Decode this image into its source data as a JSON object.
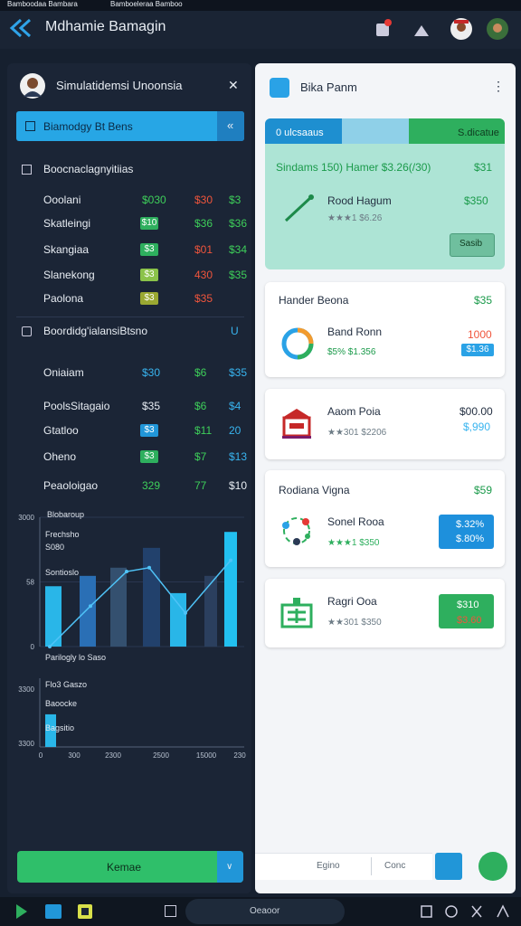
{
  "status_bar": {
    "tabs": [
      "Bamboodaa Bambara",
      "Bamboeleraa Bamboo"
    ]
  },
  "header": {
    "title": "Mdhamie Bamagin"
  },
  "left_panel": {
    "title": "Simulatidemsi Unoonsia",
    "search": "Biamodgy Bt Bens",
    "section1": {
      "title": "Boocnaclagnyitiias",
      "rows": [
        {
          "name": "Ooolani",
          "cells": [
            "$030",
            "$30",
            "$3"
          ]
        },
        {
          "name": "Skatleingi",
          "cells": [
            "$10",
            "$36",
            "$36"
          ]
        },
        {
          "name": "Skangiaa",
          "cells": [
            "$3",
            "$01",
            "$34"
          ]
        },
        {
          "name": "Slanekong",
          "cells": [
            "$3",
            "430",
            "$35"
          ]
        },
        {
          "name": "Paolona",
          "cells": [
            "$3",
            "$35"
          ]
        }
      ]
    },
    "section2": {
      "title": "Boordidg'ialansiBtsno",
      "badge": "U",
      "rows": [
        {
          "name": "Oniaiam",
          "cells": [
            "$30",
            "$6",
            "$35"
          ]
        },
        {
          "name": "PoolsSitagaio",
          "cells": [
            "$35",
            "$6",
            "$4"
          ]
        },
        {
          "name": "Gtatloo",
          "cells": [
            "$3",
            "$11",
            "20"
          ]
        },
        {
          "name": "Oheno",
          "cells": [
            "$3",
            "$7",
            "$13"
          ]
        },
        {
          "name": "Peaoloigao",
          "cells": [
            "329",
            "77",
            "$10"
          ]
        }
      ]
    },
    "chart": {
      "labels": [
        "Blobaroup",
        "Frechsho",
        "S080",
        "Sontioslo",
        "Parilogly lo Saso"
      ],
      "y_axis_labels": [
        "3000",
        "58",
        "0"
      ],
      "ylim": [
        0,
        3000
      ],
      "bars": [
        1400,
        1640,
        1830,
        2290,
        1240,
        1640,
        2660
      ],
      "bar_colors": [
        "#29b6e8",
        "#2a6fb5",
        "#34506f",
        "#22416c",
        "#29b6e8",
        "#2b3f5e",
        "#22c0f0"
      ],
      "line": [
        0,
        940,
        1740,
        1830,
        780,
        2000
      ],
      "line_color": "#4fc3f7"
    },
    "mini_chart": {
      "labels": [
        "Flo3 Gaszo",
        "Baoocke",
        "Bagsitio"
      ],
      "y_axis_labels": [
        "3300",
        "3300"
      ],
      "x_axis_labels": [
        "0",
        "300",
        "2300",
        "2500",
        "15000",
        "230"
      ],
      "ylim": [
        0,
        3300
      ],
      "bars": [
        1860
      ],
      "bar_colors": [
        "#29b6e8"
      ]
    },
    "button": "Kemae"
  },
  "right_panel": {
    "title": "Bika Panm",
    "summary": {
      "tabs": [
        "0 ulcsaaus",
        "S.dicatue"
      ],
      "title": "Sindams 150) Hamer $3.26(/30)",
      "value": "$31",
      "item_name": "Rood Hagum",
      "item_sub": "★★★1 $6.26",
      "item_value": "$350",
      "button": "Sasib"
    },
    "cards": [
      {
        "title": "Hander Beona",
        "value": "$35",
        "item_name": "Band Ronn",
        "item_sub": "$5%  $1.356",
        "value_a": "1000",
        "value_b": "$1.36"
      },
      {
        "item_name": "Aaom Poia",
        "item_sub": "★★301 $2206",
        "value_a": "$00.00",
        "value_b": "$,990"
      },
      {
        "title": "Rodiana Vigna",
        "value": "$59",
        "item_name": "Sonel Rooa",
        "item_sub": "★★★1 $350",
        "value_a": "$.32%",
        "value_b": "$.80%"
      },
      {
        "item_name": "Ragri Ooa",
        "item_sub": "★★301 $350",
        "value_a": "$310",
        "value_b": "$3.60"
      }
    ],
    "footer": [
      "Egino",
      "Conc"
    ]
  },
  "taskbar": {
    "search": "Oeaoor"
  }
}
